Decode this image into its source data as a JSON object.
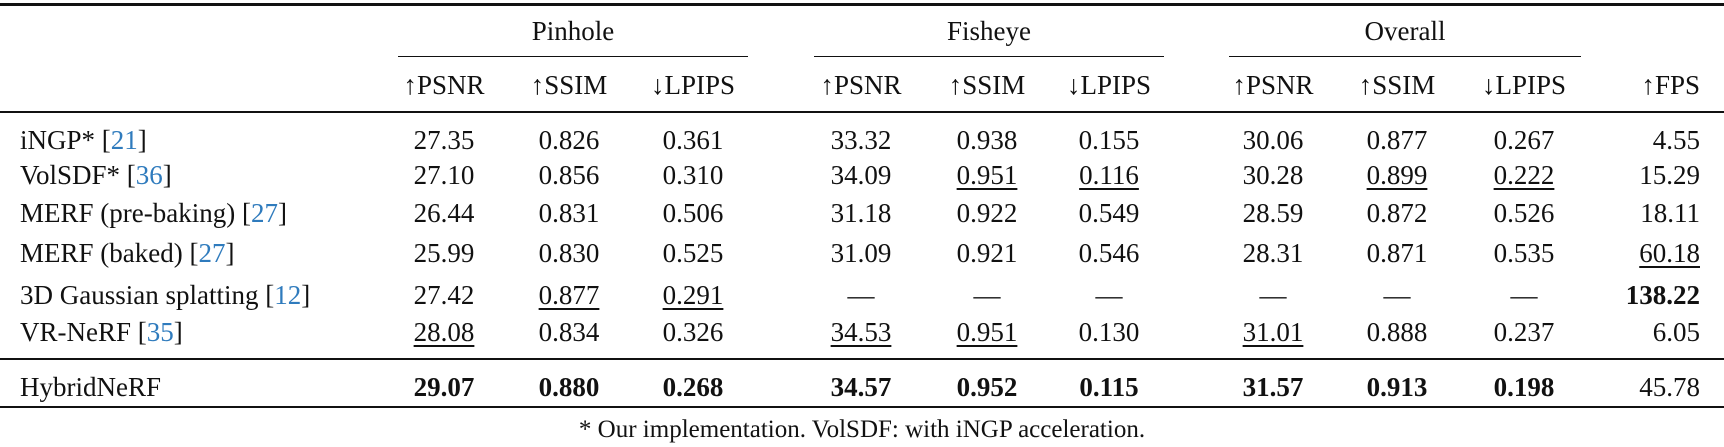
{
  "table": {
    "groups": [
      "Pinhole",
      "Fisheye",
      "Overall"
    ],
    "columns": [
      "↑PSNR",
      "↑SSIM",
      "↓LPIPS",
      "↑PSNR",
      "↑SSIM",
      "↓LPIPS",
      "↑PSNR",
      "↑SSIM",
      "↓LPIPS",
      "↑FPS"
    ],
    "rows": [
      {
        "method": {
          "text": "iNGP* [",
          "ref": "21",
          "close": "]"
        },
        "cells": [
          "27.35",
          "0.826",
          "0.361",
          "33.32",
          "0.938",
          "0.155",
          "30.06",
          "0.877",
          "0.267",
          "4.55"
        ]
      },
      {
        "method": {
          "text": "VolSDF* [",
          "ref": "36",
          "close": "]"
        },
        "cells": [
          "27.10",
          "0.856",
          "0.310",
          "34.09",
          {
            "text": "0.951",
            "style": "underline"
          },
          {
            "text": "0.116",
            "style": "underline"
          },
          "30.28",
          {
            "text": "0.899",
            "style": "underline"
          },
          {
            "text": "0.222",
            "style": "underline"
          },
          "15.29"
        ]
      },
      {
        "method": {
          "text": "MERF (pre-baking) [",
          "ref": "27",
          "close": "]"
        },
        "cells": [
          "26.44",
          "0.831",
          "0.506",
          "31.18",
          "0.922",
          "0.549",
          "28.59",
          "0.872",
          "0.526",
          "18.11"
        ]
      },
      {
        "method": {
          "text": "MERF (baked) [",
          "ref": "27",
          "close": "]"
        },
        "cells": [
          "25.99",
          "0.830",
          "0.525",
          "31.09",
          "0.921",
          "0.546",
          "28.31",
          "0.871",
          "0.535",
          {
            "text": "60.18",
            "style": "underline"
          }
        ]
      },
      {
        "method": {
          "text": "3D Gaussian splatting [",
          "ref": "12",
          "close": "]"
        },
        "cells": [
          "27.42",
          {
            "text": "0.877",
            "style": "underline"
          },
          {
            "text": "0.291",
            "style": "underline"
          },
          "—",
          "—",
          "—",
          "—",
          "—",
          "—",
          {
            "text": "138.22",
            "style": "bold"
          }
        ]
      },
      {
        "method": {
          "text": "VR-NeRF [",
          "ref": "35",
          "close": "]"
        },
        "cells": [
          {
            "text": "28.08",
            "style": "underline"
          },
          "0.834",
          "0.326",
          {
            "text": "34.53",
            "style": "underline"
          },
          {
            "text": "0.951",
            "style": "underline"
          },
          "0.130",
          {
            "text": "31.01",
            "style": "underline"
          },
          "0.888",
          "0.237",
          "6.05"
        ]
      },
      {
        "method": {
          "text": "HybridNeRF"
        },
        "cells": [
          {
            "text": "29.07",
            "style": "bold"
          },
          {
            "text": "0.880",
            "style": "bold"
          },
          {
            "text": "0.268",
            "style": "bold"
          },
          {
            "text": "34.57",
            "style": "bold"
          },
          {
            "text": "0.952",
            "style": "bold"
          },
          {
            "text": "0.115",
            "style": "bold"
          },
          {
            "text": "31.57",
            "style": "bold"
          },
          {
            "text": "0.913",
            "style": "bold"
          },
          {
            "text": "0.198",
            "style": "bold"
          },
          "45.78"
        ]
      }
    ]
  },
  "footnote": "* Our implementation. VolSDF: with iNGP acceleration."
}
